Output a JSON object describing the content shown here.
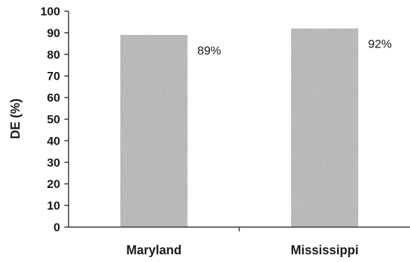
{
  "chart_data": {
    "type": "bar",
    "categories": [
      "Maryland",
      "Mississippi"
    ],
    "values": [
      89,
      92
    ],
    "data_labels": [
      "89%",
      "92%"
    ],
    "ylabel": "DE (%)",
    "xlabel": "",
    "ylim": [
      0,
      100
    ],
    "yticks": [
      0,
      10,
      20,
      30,
      40,
      50,
      60,
      70,
      80,
      90,
      100
    ],
    "grid": false,
    "legend": "none",
    "bar_color": "#bdbdbd",
    "axis_color": "#333333"
  }
}
